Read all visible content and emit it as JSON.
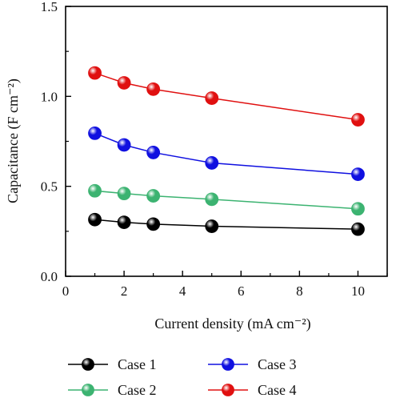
{
  "chart_data": {
    "type": "line",
    "xlabel": "Current density (mA cm⁻²)",
    "ylabel": "Capacitance (F cm⁻²)",
    "xlim": [
      0,
      11
    ],
    "ylim": [
      0,
      1.5
    ],
    "x_ticks": [
      "0",
      "2",
      "4",
      "6",
      "8",
      "10"
    ],
    "y_ticks": [
      "0.0",
      "0.5",
      "1.0",
      "1.5"
    ],
    "grid": false,
    "legend_position": "bottom",
    "x": [
      1,
      2,
      3,
      5,
      10
    ],
    "series": [
      {
        "name": "Case 1",
        "color": "#000000",
        "values": [
          0.315,
          0.3,
          0.29,
          0.278,
          0.262
        ]
      },
      {
        "name": "Case 2",
        "color": "#3cb371",
        "values": [
          0.475,
          0.46,
          0.447,
          0.428,
          0.375
        ]
      },
      {
        "name": "Case 3",
        "color": "#1010e0",
        "values": [
          0.795,
          0.73,
          0.688,
          0.63,
          0.567
        ]
      },
      {
        "name": "Case 4",
        "color": "#e01010",
        "values": [
          1.13,
          1.075,
          1.04,
          0.99,
          0.87
        ]
      }
    ]
  }
}
